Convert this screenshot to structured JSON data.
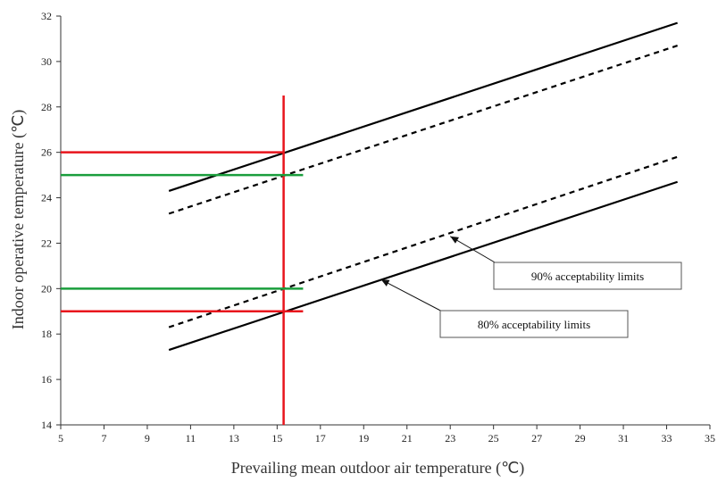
{
  "chart_data": {
    "type": "line",
    "title": "",
    "xlabel": "Prevailing mean outdoor air temperature (℃)",
    "ylabel": "Indoor operative temperature (℃)",
    "xlim": [
      5,
      35
    ],
    "ylim": [
      14,
      32
    ],
    "xticks": [
      5,
      7,
      9,
      11,
      13,
      15,
      17,
      19,
      21,
      23,
      25,
      27,
      29,
      31,
      33,
      35
    ],
    "yticks": [
      14,
      16,
      18,
      20,
      22,
      24,
      26,
      28,
      30,
      32
    ],
    "grid": false,
    "series": [
      {
        "key": "upper80",
        "style": "solid",
        "color": "#000000",
        "x": [
          10,
          33.5
        ],
        "y": [
          24.3,
          31.7
        ]
      },
      {
        "key": "upper90",
        "style": "dashed",
        "color": "#000000",
        "x": [
          10,
          33.5
        ],
        "y": [
          23.3,
          30.7
        ]
      },
      {
        "key": "lower90",
        "style": "dashed",
        "color": "#000000",
        "x": [
          10,
          33.5
        ],
        "y": [
          18.3,
          25.8
        ]
      },
      {
        "key": "lower80",
        "style": "solid",
        "color": "#000000",
        "x": [
          10,
          33.5
        ],
        "y": [
          17.3,
          24.7
        ]
      }
    ],
    "reference_lines": [
      {
        "orientation": "vertical",
        "x": 15.3,
        "y_range": [
          14,
          28.5
        ],
        "color": "#e8141c"
      },
      {
        "orientation": "horizontal",
        "y": 26,
        "x_range": [
          5,
          15.3
        ],
        "color": "#e8141c"
      },
      {
        "orientation": "horizontal",
        "y": 19,
        "x_range": [
          5,
          16.2
        ],
        "color": "#e8141c"
      },
      {
        "orientation": "horizontal",
        "y": 25,
        "x_range": [
          5,
          16.2
        ],
        "color": "#1a9e3c"
      },
      {
        "orientation": "horizontal",
        "y": 20,
        "x_range": [
          5,
          16.2
        ],
        "color": "#1a9e3c"
      }
    ],
    "annotations": [
      {
        "text": "90% acceptability limits",
        "target_series": "lower90",
        "arrow_to": [
          23.0,
          22.3
        ]
      },
      {
        "text": "80% acceptability limits",
        "target_series": "lower80",
        "arrow_to": [
          19.8,
          20.4
        ]
      }
    ]
  }
}
